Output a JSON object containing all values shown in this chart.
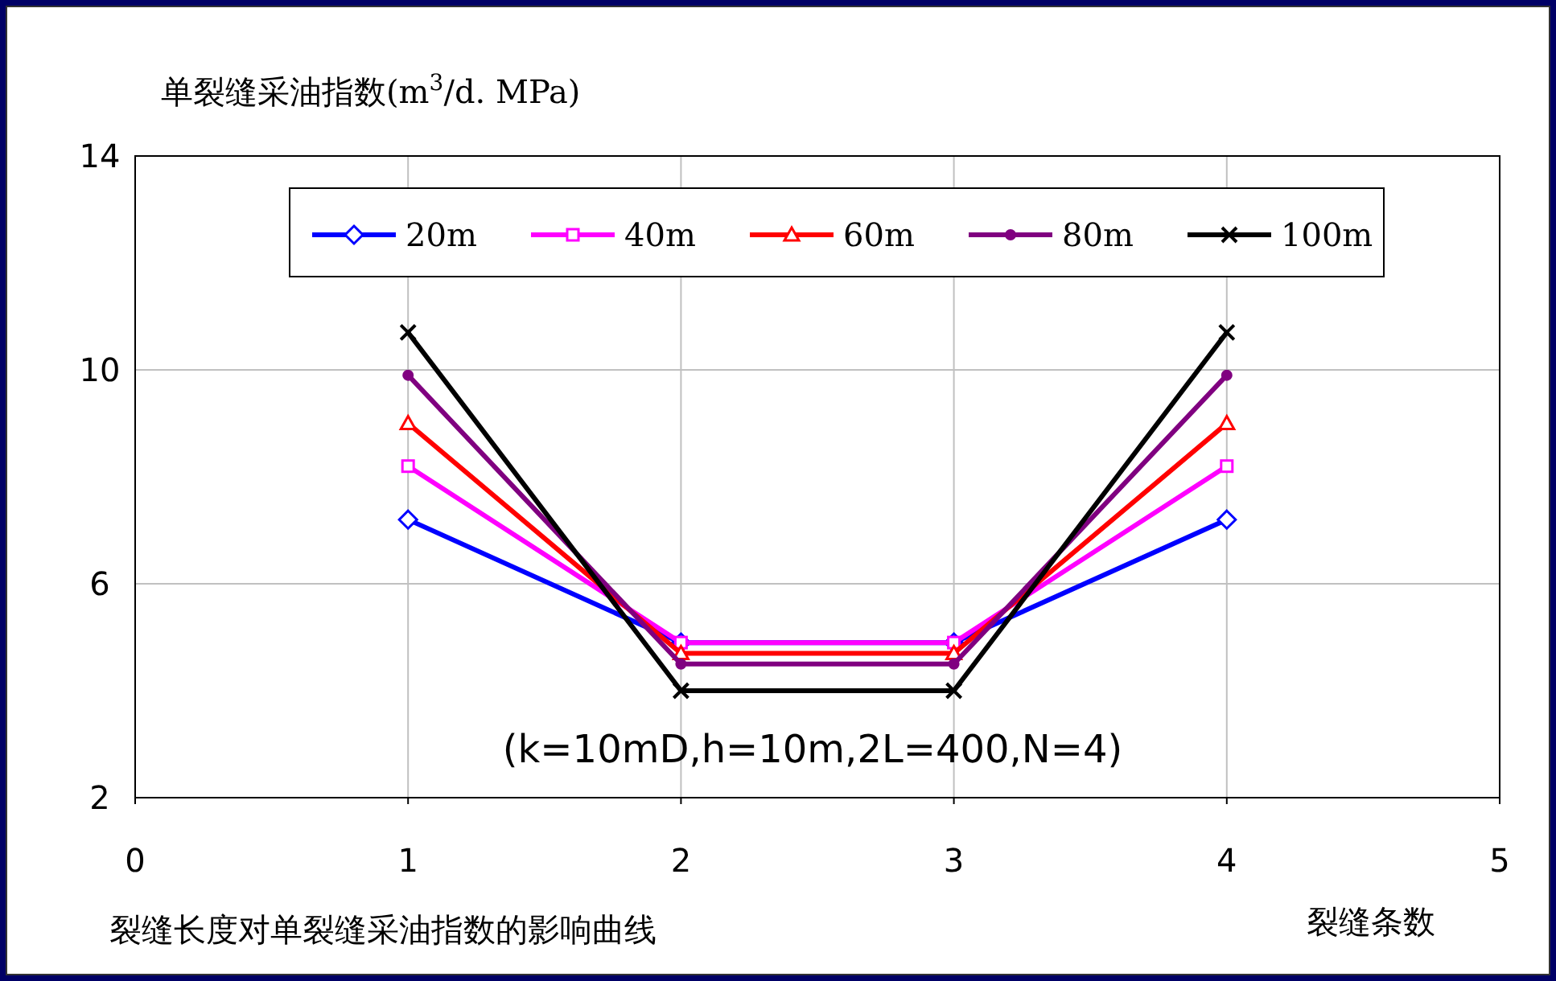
{
  "chart_data": {
    "type": "line",
    "xlabel": "裂缝条数",
    "ylabel": "单裂缝采油指数(m$^{3}$/d. MPa)",
    "annotations": [
      {
        "text": "(k=10mD,h=10m,2L=400,N=4)"
      },
      {
        "text": "裂缝长度对单裂缝采油指数的影响曲线"
      }
    ],
    "x": [
      1,
      2,
      3,
      4
    ],
    "xlim": [
      0,
      5
    ],
    "xticks": [
      0,
      1,
      2,
      3,
      4,
      5
    ],
    "ylim": [
      2,
      14
    ],
    "yticks": [
      2,
      6,
      10,
      14
    ],
    "grid": true,
    "legend": "top",
    "line_style": "solid",
    "series": [
      {
        "name": "20m",
        "color": "#0000ff",
        "marker": "diamond",
        "values": [
          7.2,
          4.9,
          4.9,
          7.2
        ]
      },
      {
        "name": "40m",
        "color": "#ff00ff",
        "marker": "square",
        "values": [
          8.2,
          4.9,
          4.9,
          8.2
        ]
      },
      {
        "name": "60m",
        "color": "#ff0000",
        "marker": "triangle",
        "values": [
          9.0,
          4.7,
          4.7,
          9.0
        ]
      },
      {
        "name": "80m",
        "color": "#800080",
        "marker": "circle",
        "values": [
          9.9,
          4.5,
          4.5,
          9.9
        ]
      },
      {
        "name": "100m",
        "color": "#000000",
        "marker": "cross",
        "values": [
          10.7,
          4.0,
          4.0,
          10.7
        ]
      }
    ]
  }
}
